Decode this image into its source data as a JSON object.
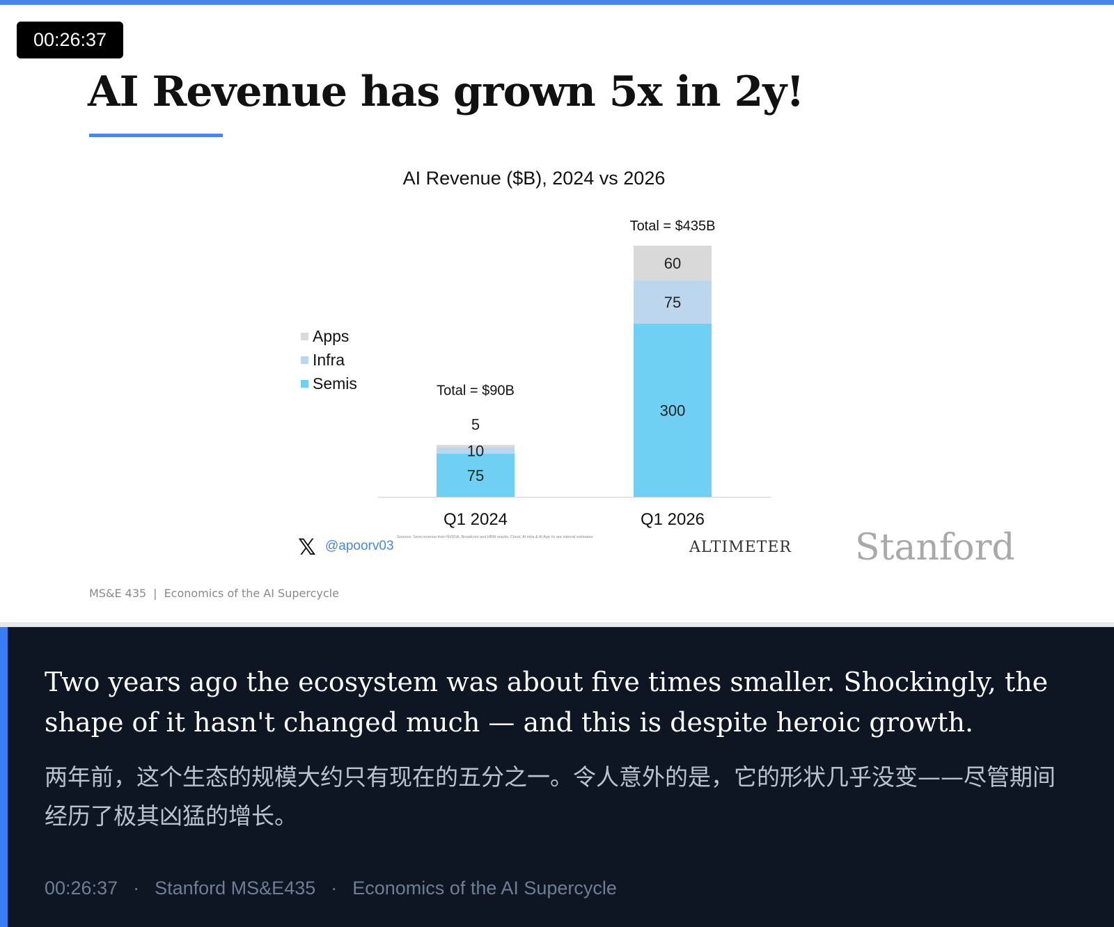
{
  "player": {
    "timestamp": "00:26:37"
  },
  "slide": {
    "title": "AI Revenue has grown 5x in 2y!",
    "footer_course": "MS&E 435",
    "footer_separator": "|",
    "footer_subtitle": "Economics of the AI Supercycle",
    "logo": "Stanford"
  },
  "chart_data": {
    "type": "bar",
    "stacked": true,
    "title": "AI Revenue ($B), 2024 vs 2026",
    "categories": [
      "Q1 2024",
      "Q1 2026"
    ],
    "series": [
      {
        "name": "Semis",
        "values": [
          75,
          300
        ],
        "color": "#6fd0f4"
      },
      {
        "name": "Infra",
        "values": [
          10,
          75
        ],
        "color": "#bcd6ee"
      },
      {
        "name": "Apps",
        "values": [
          5,
          60
        ],
        "color": "#d9d9d9"
      }
    ],
    "totals": [
      "Total = $90B",
      "Total = $435B"
    ],
    "legend_order": [
      "Apps",
      "Infra",
      "Semis"
    ],
    "legend_placement": "left",
    "grid": false,
    "ylim": [
      0,
      435
    ],
    "handle": "@apoorv03",
    "handle_icon": "x-logo-icon",
    "sources_note": "Sources: Semi revenue from NVIDIA, Broadcom and HBM results; Cloud, AI infra & AI App #s are internal estimates",
    "brand": "ALTIMETER"
  },
  "caption": {
    "english": "Two years ago the ecosystem was about five times smaller. Shockingly, the shape of it hasn't changed much — and this is despite heroic growth.",
    "chinese": "两年前，这个生态的规模大约只有现在的五分之一。令人意外的是，它的形状几乎没变——尽管期间经历了极其凶猛的增长。",
    "meta_time": "00:26:37",
    "meta_dot": "·",
    "meta_course": "Stanford MS&E435",
    "meta_title": "Economics of the AI Supercycle"
  }
}
